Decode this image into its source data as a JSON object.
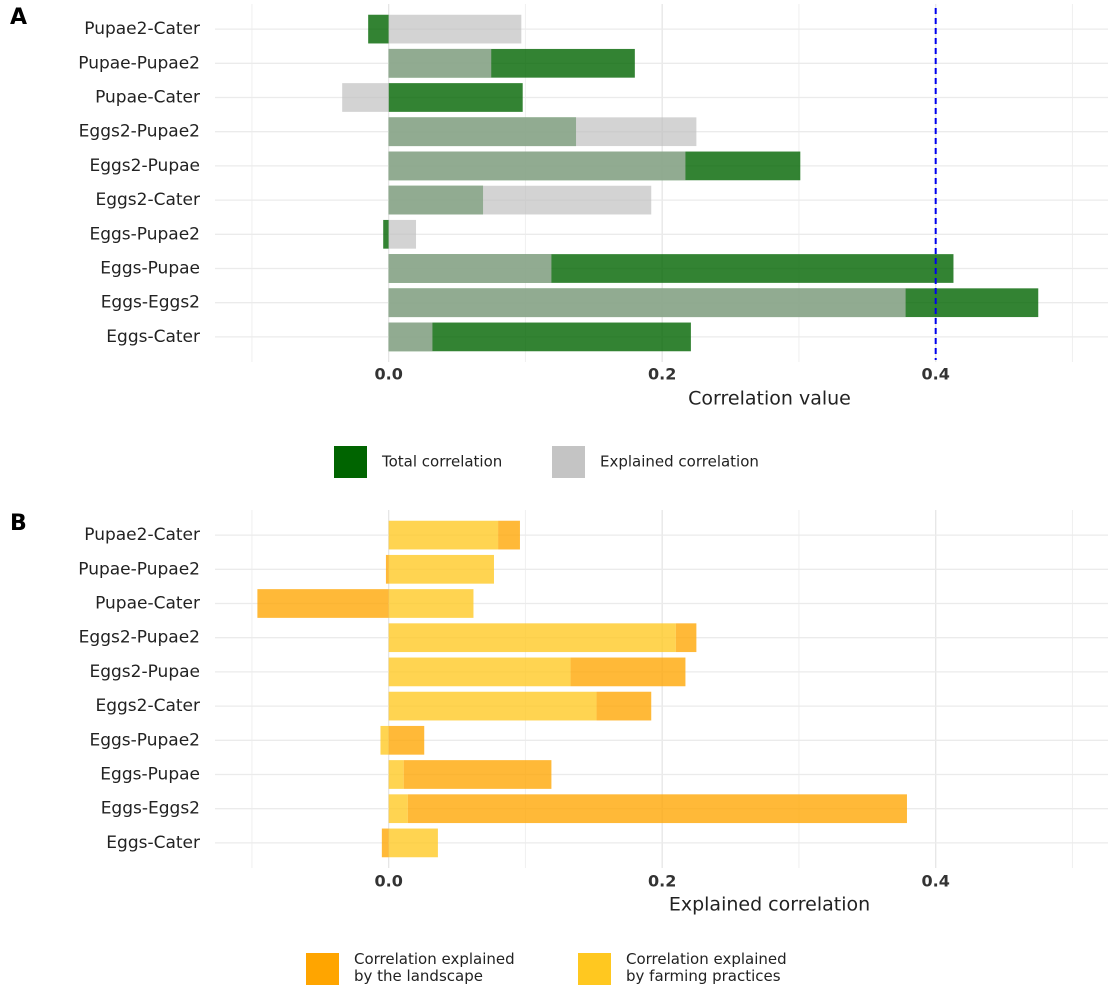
{
  "chart_data": [
    {
      "type": "bar",
      "panel": "A",
      "orientation": "horizontal",
      "stacked": false,
      "categories": [
        "Pupae2-Cater",
        "Pupae-Pupae2",
        "Pupae-Cater",
        "Eggs2-Pupae2",
        "Eggs2-Pupae",
        "Eggs2-Cater",
        "Eggs-Pupae2",
        "Eggs-Pupae",
        "Eggs-Eggs2",
        "Eggs-Cater"
      ],
      "series": [
        {
          "name": "Total correlation",
          "color": "#006400",
          "values": [
            -0.015,
            0.18,
            0.098,
            0.137,
            0.301,
            0.069,
            -0.004,
            0.413,
            0.475,
            0.221
          ]
        },
        {
          "name": "Explained correlation",
          "color": "#bebebe",
          "values": [
            0.097,
            0.075,
            -0.034,
            0.225,
            0.217,
            0.192,
            0.02,
            0.119,
            0.378,
            0.032
          ]
        }
      ],
      "xlabel": "Correlation value",
      "xlim": [
        -0.127,
        0.526
      ],
      "xticks": [
        {
          "value": 0,
          "label": "0.0"
        },
        0.2,
        0.4
      ],
      "minor_xticks": [
        -0.1,
        0.1,
        0.3,
        0.5
      ],
      "vline": 0.4,
      "vline_color": "#0000ee",
      "grid": true
    },
    {
      "type": "bar",
      "panel": "B",
      "orientation": "horizontal",
      "stacked": true,
      "categories": [
        "Pupae2-Cater",
        "Pupae-Pupae2",
        "Pupae-Cater",
        "Eggs2-Pupae2",
        "Eggs2-Pupae",
        "Eggs2-Cater",
        "Eggs-Pupae2",
        "Eggs-Pupae",
        "Eggs-Eggs2",
        "Eggs-Cater"
      ],
      "series": [
        {
          "name": "Correlation explained by farming practices",
          "color": "#ffc820",
          "values": [
            0.08,
            0.077,
            0.062,
            0.21,
            0.133,
            0.152,
            -0.006,
            0.011,
            0.014,
            0.036
          ]
        },
        {
          "name": "Correlation explained by the landscape",
          "color": "#ffa500",
          "values": [
            0.016,
            -0.002,
            -0.096,
            0.015,
            0.084,
            0.04,
            0.026,
            0.108,
            0.365,
            -0.005
          ]
        }
      ],
      "legend_order": [
        1,
        0
      ],
      "xlabel": "Explained correlation",
      "xlim": [
        -0.127,
        0.526
      ],
      "xticks": [
        {
          "value": 0,
          "label": "0.0"
        },
        0.2,
        0.4
      ],
      "minor_xticks": [
        -0.1,
        0.1,
        0.3,
        0.5
      ],
      "grid": true
    }
  ]
}
